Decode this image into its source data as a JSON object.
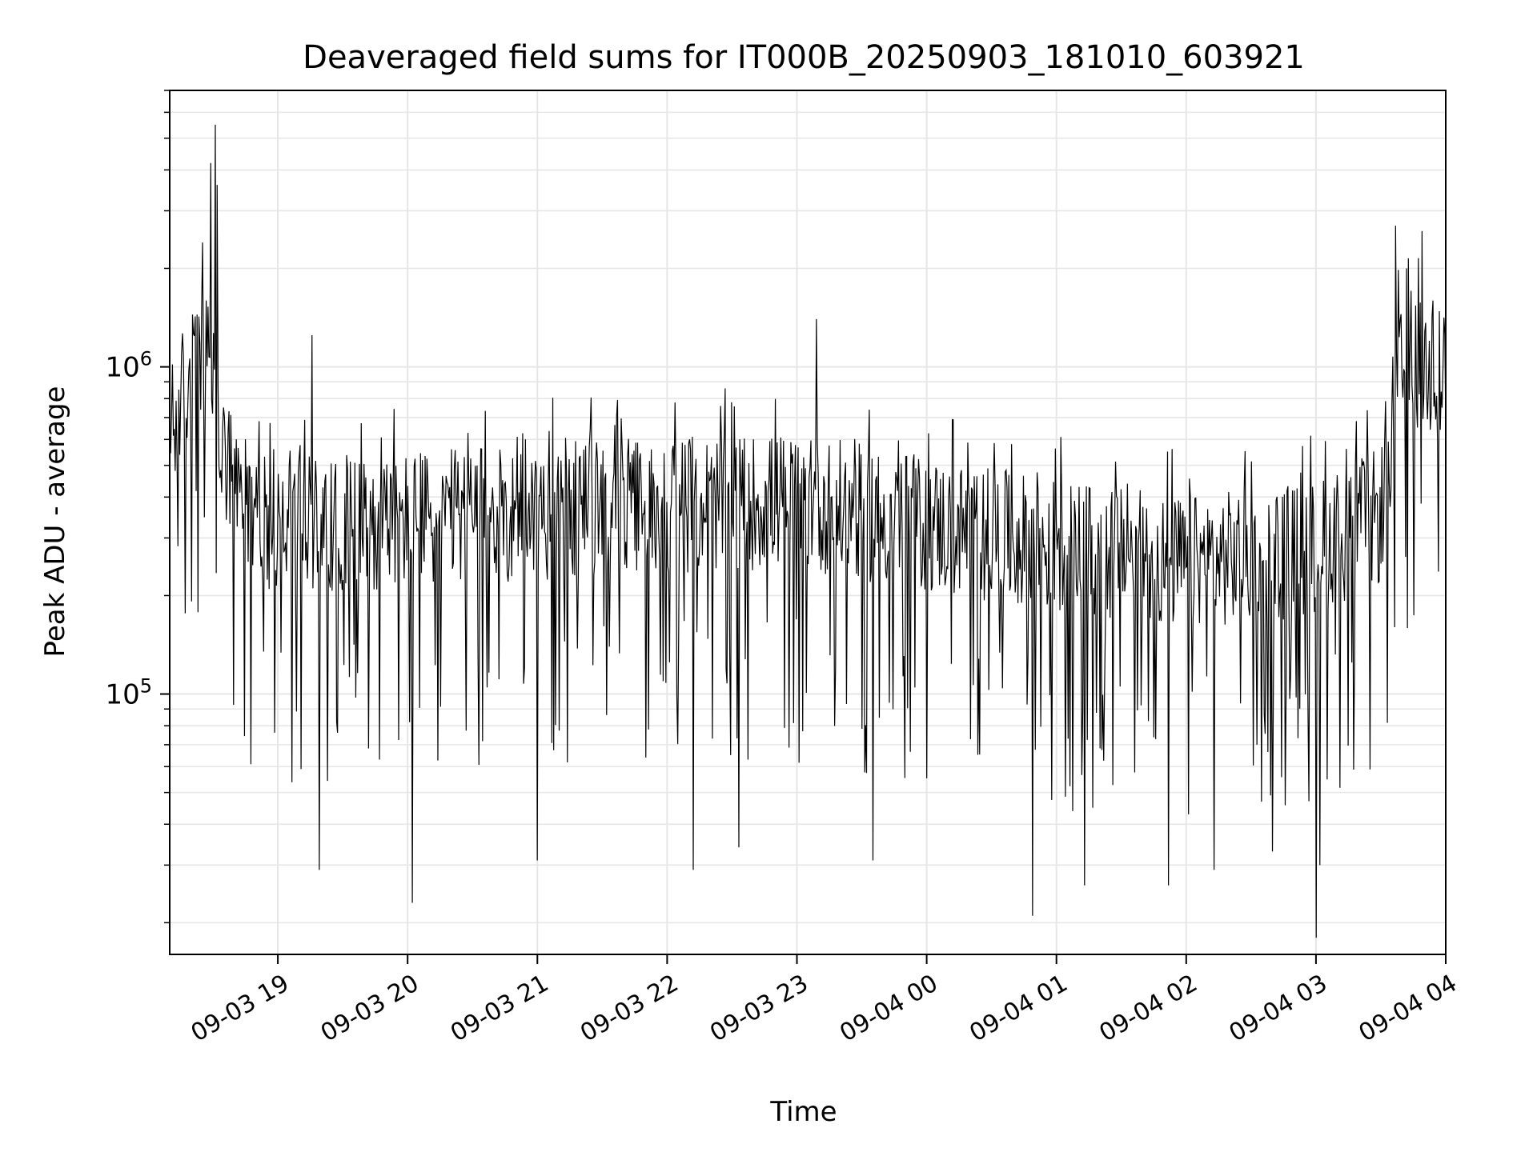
{
  "chart_data": {
    "type": "line",
    "title": "Deaveraged field sums for IT000B_20250903_181010_603921",
    "xlabel": "Time",
    "ylabel": "Peak ADU - average",
    "xlim": [
      "2025-09-03 18:10",
      "2025-09-04 04:00"
    ],
    "ylim": [
      16000,
      7000000
    ],
    "yscale": "log",
    "grid": true,
    "line_color": "#000000",
    "grid_color": "#e6e6e6",
    "x_ticks": [
      {
        "t": "2025-09-03 19:00",
        "label": "09-03 19"
      },
      {
        "t": "2025-09-03 20:00",
        "label": "09-03 20"
      },
      {
        "t": "2025-09-03 21:00",
        "label": "09-03 21"
      },
      {
        "t": "2025-09-03 22:00",
        "label": "09-03 22"
      },
      {
        "t": "2025-09-03 23:00",
        "label": "09-03 23"
      },
      {
        "t": "2025-09-04 00:00",
        "label": "09-04 00"
      },
      {
        "t": "2025-09-04 01:00",
        "label": "09-04 01"
      },
      {
        "t": "2025-09-04 02:00",
        "label": "09-04 02"
      },
      {
        "t": "2025-09-04 03:00",
        "label": "09-04 03"
      },
      {
        "t": "2025-09-04 04:00",
        "label": "09-04 04"
      }
    ],
    "y_ticks": [
      {
        "v": 100000,
        "base": "10",
        "exp": "5"
      },
      {
        "v": 1000000,
        "base": "10",
        "exp": "6"
      }
    ],
    "envelope": {
      "x": [
        "2025-09-03 18:10",
        "2025-09-03 18:18",
        "2025-09-03 18:25",
        "2025-09-03 18:30",
        "2025-09-03 18:35",
        "2025-09-03 18:45",
        "2025-09-03 19:00",
        "2025-09-03 20:00",
        "2025-09-03 21:00",
        "2025-09-03 22:00",
        "2025-09-03 23:00",
        "2025-09-04 00:00",
        "2025-09-04 01:00",
        "2025-09-04 02:00",
        "2025-09-04 03:00",
        "2025-09-04 03:30",
        "2025-09-04 03:38",
        "2025-09-04 03:45",
        "2025-09-04 04:00"
      ],
      "y": [
        600000,
        900000,
        1100000,
        900000,
        500000,
        350000,
        330000,
        340000,
        360000,
        380000,
        390000,
        330000,
        280000,
        250000,
        280000,
        350000,
        900000,
        1000000,
        950000
      ]
    },
    "peaks": [
      {
        "t": "2025-09-03 18:31",
        "v": 5500000
      },
      {
        "t": "2025-09-03 18:29",
        "v": 4200000
      },
      {
        "t": "2025-09-03 18:32",
        "v": 3600000
      },
      {
        "t": "2025-09-03 18:25",
        "v": 2400000
      },
      {
        "t": "2025-09-03 19:16",
        "v": 1250000
      },
      {
        "t": "2025-09-03 23:09",
        "v": 1400000
      },
      {
        "t": "2025-09-04 03:37",
        "v": 2700000
      },
      {
        "t": "2025-09-04 03:49",
        "v": 2600000
      },
      {
        "t": "2025-09-04 03:42",
        "v": 2000000
      }
    ],
    "dips": [
      {
        "t": "2025-09-03 19:19",
        "v": 29000
      },
      {
        "t": "2025-09-03 20:02",
        "v": 23000
      },
      {
        "t": "2025-09-03 21:00",
        "v": 31000
      },
      {
        "t": "2025-09-03 22:12",
        "v": 29000
      },
      {
        "t": "2025-09-03 22:33",
        "v": 34000
      },
      {
        "t": "2025-09-03 23:35",
        "v": 31000
      },
      {
        "t": "2025-09-04 00:49",
        "v": 21000
      },
      {
        "t": "2025-09-04 01:13",
        "v": 26000
      },
      {
        "t": "2025-09-04 01:52",
        "v": 26000
      },
      {
        "t": "2025-09-04 02:13",
        "v": 29000
      },
      {
        "t": "2025-09-04 02:40",
        "v": 33000
      },
      {
        "t": "2025-09-04 03:00",
        "v": 18000
      },
      {
        "t": "2025-09-04 03:02",
        "v": 30000
      }
    ],
    "n_points": 1400
  }
}
